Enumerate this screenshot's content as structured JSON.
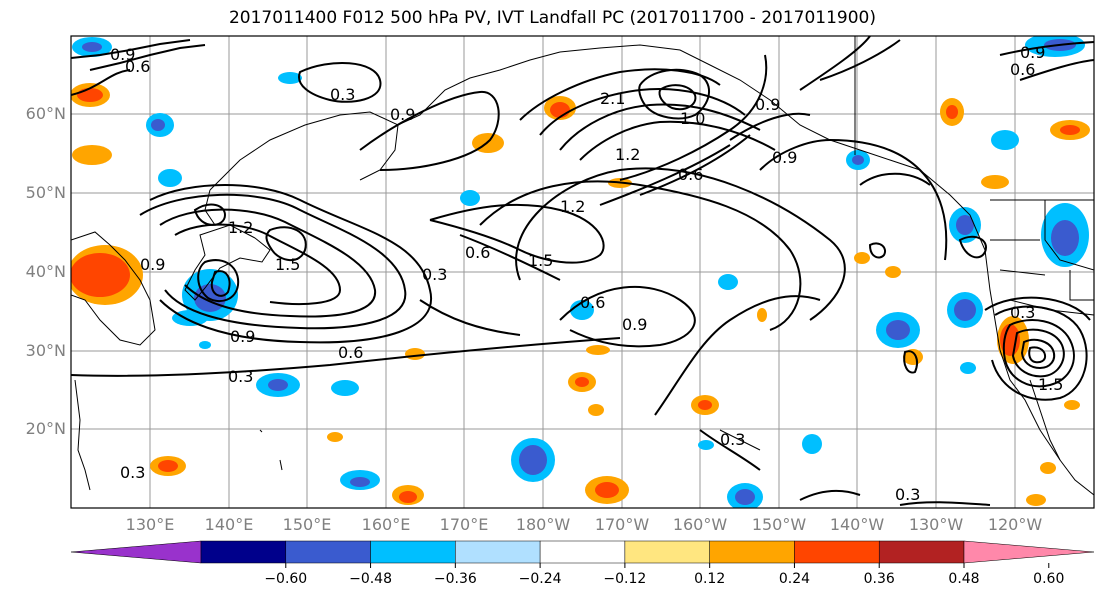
{
  "title": "2017011400 F012 500 hPa PV, IVT Landfall PC (2017011700 - 2017011900)",
  "lat_labels": [
    "60°N",
    "50°N",
    "40°N",
    "30°N",
    "20°N"
  ],
  "lon_labels": [
    "130°E",
    "140°E",
    "150°E",
    "160°E",
    "170°E",
    "180°W",
    "170°W",
    "160°W",
    "150°W",
    "140°W",
    "130°W",
    "120°W"
  ],
  "contour_labels": [
    "0.9",
    "0.6",
    "0.3",
    "0.9",
    "1.5",
    "1.2",
    "2.1",
    "1.0",
    "0.9",
    "0.9",
    "0.6",
    "1.2",
    "1.5",
    "0.6",
    "0.6",
    "0.9",
    "0.9",
    "0.6",
    "0.3",
    "0.3",
    "0.3",
    "0.3",
    "1.2",
    "0.9",
    "0.6",
    "0.9",
    "0.3",
    "1.5",
    "0.3"
  ],
  "colorbar": {
    "ticks": [
      "−0.60",
      "−0.48",
      "−0.36",
      "−0.24",
      "−0.12",
      "0.12",
      "0.24",
      "0.36",
      "0.48",
      "0.60"
    ],
    "colors": [
      "#9932cc",
      "#00008b",
      "#3a5bcf",
      "#00bfff",
      "#b0e0ff",
      "#ffffff",
      "#ffe680",
      "#ffa500",
      "#ff4500",
      "#b22222",
      "#ff88aa"
    ]
  }
}
